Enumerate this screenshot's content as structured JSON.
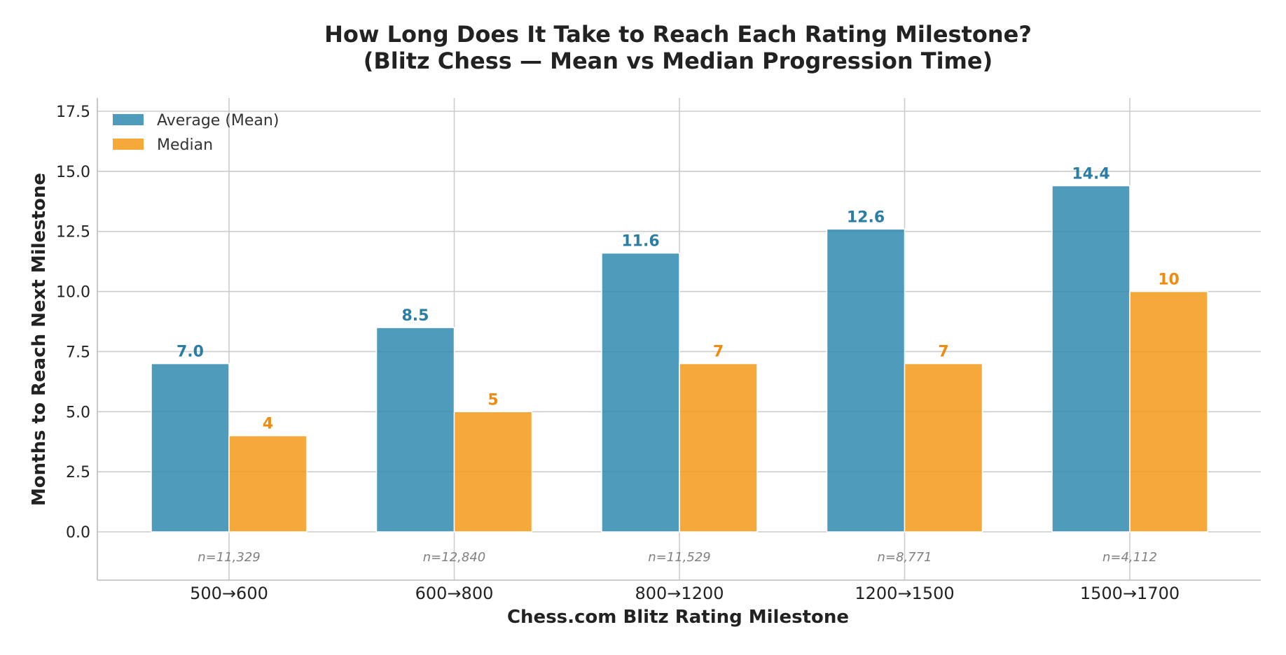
{
  "chart_data": {
    "type": "bar",
    "title_line1": "How Long Does It Take to Reach Each Rating Milestone?",
    "title_line2": "(Blitz Chess — Mean vs Median Progression Time)",
    "xlabel": "Chess.com Blitz Rating Milestone",
    "ylabel": "Months to Reach Next Milestone",
    "categories": [
      "500→600",
      "600→800",
      "800→1200",
      "1200→1500",
      "1500→1700"
    ],
    "sample_sizes": [
      "n=11,329",
      "n=12,840",
      "n=11,529",
      "n=8,771",
      "n=4,112"
    ],
    "series": [
      {
        "name": "Average (Mean)",
        "color": "#2f8ab0",
        "label_color": "#2a7ea3",
        "values": [
          7.0,
          8.5,
          11.6,
          12.6,
          14.4
        ],
        "labels": [
          "7.0",
          "8.5",
          "11.6",
          "12.6",
          "14.4"
        ]
      },
      {
        "name": "Median",
        "color": "#f29a17",
        "label_color": "#ef8c10",
        "values": [
          4,
          5,
          7,
          7,
          10
        ],
        "labels": [
          "4",
          "5",
          "7",
          "7",
          "10"
        ]
      }
    ],
    "ylim": [
      -2.0,
      18.0
    ],
    "yticks": [
      0.0,
      2.5,
      5.0,
      7.5,
      10.0,
      12.5,
      15.0,
      17.5
    ],
    "ytick_labels": [
      "0.0",
      "2.5",
      "5.0",
      "7.5",
      "10.0",
      "12.5",
      "15.0",
      "17.5"
    ],
    "grid": true,
    "legend_position": "top-left"
  }
}
